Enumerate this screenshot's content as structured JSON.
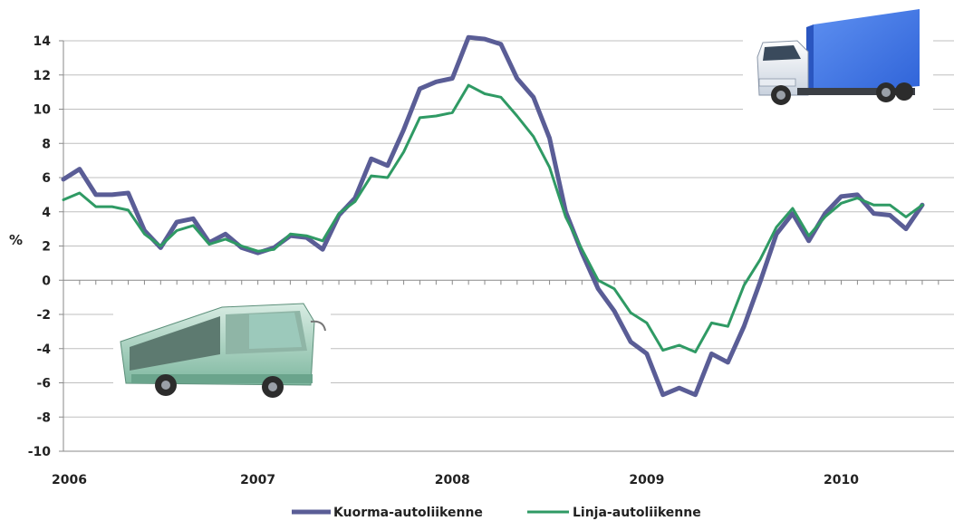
{
  "chart_data": {
    "type": "line",
    "ylabel": "%",
    "ylim": [
      -10,
      14
    ],
    "yticks": [
      "14",
      "12",
      "10",
      "8",
      "6",
      "4",
      "2",
      "0",
      "-2",
      "-4",
      "-6",
      "-8",
      "-10"
    ],
    "xticks": [
      "2006",
      "2007",
      "2008",
      "2009",
      "2010"
    ],
    "grid": true,
    "legend_position": "bottom",
    "series": [
      {
        "name": "Kuorma-autoliikenne",
        "color": "#5a5d96",
        "x": [
          2006.0,
          2006.083,
          2006.167,
          2006.25,
          2006.333,
          2006.417,
          2006.5,
          2006.583,
          2006.667,
          2006.75,
          2006.833,
          2006.917,
          2007.0,
          2007.083,
          2007.167,
          2007.25,
          2007.333,
          2007.417,
          2007.5,
          2007.583,
          2007.667,
          2007.75,
          2007.833,
          2007.917,
          2008.0,
          2008.083,
          2008.167,
          2008.25,
          2008.333,
          2008.417,
          2008.5,
          2008.583,
          2008.667,
          2008.75,
          2008.833,
          2008.917,
          2009.0,
          2009.083,
          2009.167,
          2009.25,
          2009.333,
          2009.417,
          2009.5,
          2009.583,
          2009.667,
          2009.75,
          2009.833,
          2009.917,
          2010.0,
          2010.083,
          2010.167,
          2010.25,
          2010.333,
          2010.417
        ],
        "values": [
          5.9,
          6.5,
          5.0,
          5.0,
          5.1,
          2.9,
          1.9,
          3.4,
          3.6,
          2.2,
          2.7,
          1.9,
          1.6,
          1.9,
          2.6,
          2.5,
          1.8,
          3.8,
          4.8,
          7.1,
          6.7,
          8.8,
          11.2,
          11.6,
          11.8,
          14.2,
          14.1,
          13.8,
          11.8,
          10.7,
          8.3,
          4.0,
          1.6,
          -0.5,
          -1.8,
          -3.6,
          -4.3,
          -6.7,
          -6.3,
          -6.7,
          -4.3,
          -4.8,
          -2.7,
          -0.1,
          2.7,
          3.9,
          2.3,
          3.9,
          4.9,
          5.0,
          3.9,
          3.8,
          3.0,
          4.4
        ]
      },
      {
        "name": "Linja-autoliikenne",
        "color": "#2f9a64",
        "x": [
          2006.0,
          2006.083,
          2006.167,
          2006.25,
          2006.333,
          2006.417,
          2006.5,
          2006.583,
          2006.667,
          2006.75,
          2006.833,
          2006.917,
          2007.0,
          2007.083,
          2007.167,
          2007.25,
          2007.333,
          2007.417,
          2007.5,
          2007.583,
          2007.667,
          2007.75,
          2007.833,
          2007.917,
          2008.0,
          2008.083,
          2008.167,
          2008.25,
          2008.333,
          2008.417,
          2008.5,
          2008.583,
          2008.667,
          2008.75,
          2008.833,
          2008.917,
          2009.0,
          2009.083,
          2009.167,
          2009.25,
          2009.333,
          2009.417,
          2009.5,
          2009.583,
          2009.667,
          2009.75,
          2009.833,
          2009.917,
          2010.0,
          2010.083,
          2010.167,
          2010.25,
          2010.333,
          2010.417
        ],
        "values": [
          4.7,
          5.1,
          4.3,
          4.3,
          4.1,
          2.7,
          2.0,
          2.9,
          3.2,
          2.1,
          2.4,
          2.0,
          1.7,
          1.8,
          2.7,
          2.6,
          2.3,
          3.9,
          4.6,
          6.1,
          6.0,
          7.5,
          9.5,
          9.6,
          9.8,
          11.4,
          10.9,
          10.7,
          9.6,
          8.4,
          6.6,
          3.7,
          1.8,
          0.0,
          -0.5,
          -1.9,
          -2.5,
          -4.1,
          -3.8,
          -4.2,
          -2.5,
          -2.7,
          -0.3,
          1.2,
          3.1,
          4.2,
          2.6,
          3.7,
          4.5,
          4.8,
          4.4,
          4.4,
          3.7,
          4.4
        ]
      }
    ]
  },
  "images": {
    "truck": "truck-image",
    "bus": "bus-image"
  }
}
